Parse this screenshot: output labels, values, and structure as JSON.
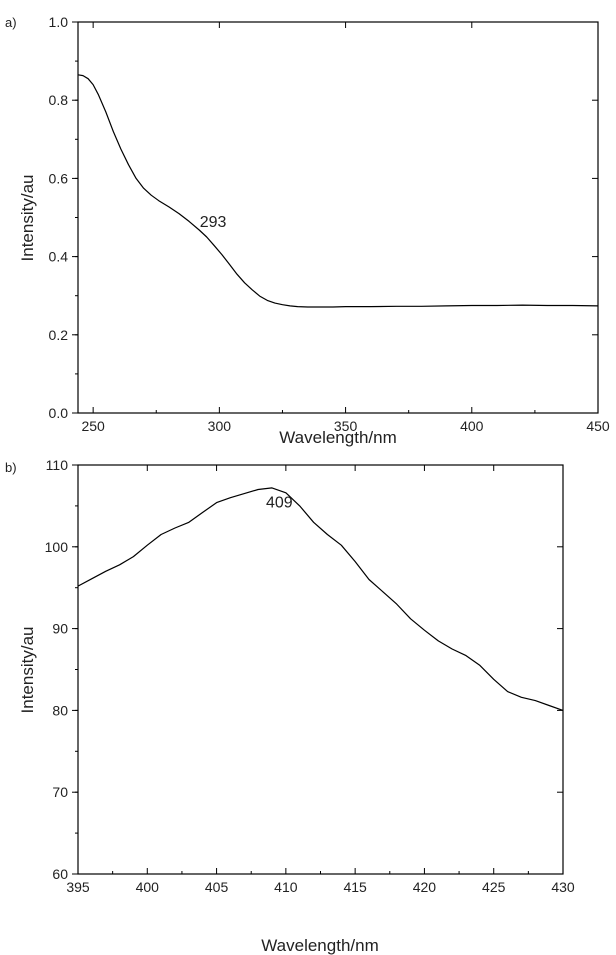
{
  "chart_data": [
    {
      "panel_label": "a)",
      "type": "line",
      "xlabel": "Wavelength/nm",
      "ylabel": "Intensity/au",
      "xlim": [
        244,
        450
      ],
      "ylim": [
        0.0,
        1.0
      ],
      "xticks": [
        250,
        300,
        350,
        400,
        450
      ],
      "yticks": [
        0.0,
        0.2,
        0.4,
        0.6,
        0.8,
        1.0
      ],
      "ytick_labels": [
        "0.0",
        "0.2",
        "0.4",
        "0.6",
        "0.8",
        "1.0"
      ],
      "grid": false,
      "annotations": [
        {
          "text": "293",
          "x": 293,
          "y": 0.45
        }
      ],
      "series": [
        {
          "x": [
            244,
            246,
            248,
            250,
            252,
            255,
            258,
            261,
            264,
            267,
            270,
            273,
            276,
            280,
            284,
            288,
            292,
            295,
            298,
            301,
            304,
            307,
            310,
            313,
            316,
            319,
            322,
            325,
            328,
            331,
            335,
            340,
            345,
            350,
            360,
            370,
            380,
            390,
            400,
            410,
            420,
            430,
            440,
            450
          ],
          "y": [
            0.865,
            0.863,
            0.855,
            0.84,
            0.815,
            0.77,
            0.72,
            0.675,
            0.635,
            0.6,
            0.575,
            0.557,
            0.543,
            0.527,
            0.51,
            0.49,
            0.468,
            0.45,
            0.428,
            0.405,
            0.38,
            0.355,
            0.333,
            0.315,
            0.299,
            0.288,
            0.281,
            0.277,
            0.274,
            0.272,
            0.271,
            0.271,
            0.271,
            0.272,
            0.272,
            0.273,
            0.273,
            0.274,
            0.275,
            0.275,
            0.276,
            0.275,
            0.275,
            0.274
          ]
        }
      ]
    },
    {
      "panel_label": "b)",
      "type": "line",
      "xlabel": "Wavelength/nm",
      "ylabel": "Intensity/au",
      "xlim": [
        395,
        430
      ],
      "ylim": [
        60,
        110
      ],
      "xticks": [
        395,
        400,
        405,
        410,
        415,
        420,
        425,
        430
      ],
      "yticks": [
        60,
        70,
        80,
        90,
        100,
        110
      ],
      "ytick_labels": [
        "60",
        "70",
        "80",
        "90",
        "100",
        "110"
      ],
      "grid": false,
      "annotations": [
        {
          "text": "409",
          "x": 409,
          "y": 107
        }
      ],
      "series": [
        {
          "x": [
            395,
            396,
            397,
            398,
            399,
            400,
            401,
            402,
            403,
            404,
            405,
            406,
            407,
            408,
            409,
            410,
            411,
            412,
            413,
            414,
            415,
            416,
            417,
            418,
            419,
            420,
            421,
            422,
            423,
            424,
            425,
            426,
            427,
            428,
            429,
            430
          ],
          "y": [
            95.2,
            96.1,
            97.0,
            97.8,
            98.8,
            100.2,
            101.5,
            102.3,
            103.0,
            104.2,
            105.4,
            106.0,
            106.5,
            107.0,
            107.2,
            106.6,
            105.0,
            103.0,
            101.5,
            100.2,
            98.2,
            96.0,
            94.5,
            93.0,
            91.2,
            89.8,
            88.5,
            87.5,
            86.7,
            85.5,
            83.8,
            82.3,
            81.6,
            81.2,
            80.6,
            80.0
          ]
        }
      ]
    }
  ]
}
